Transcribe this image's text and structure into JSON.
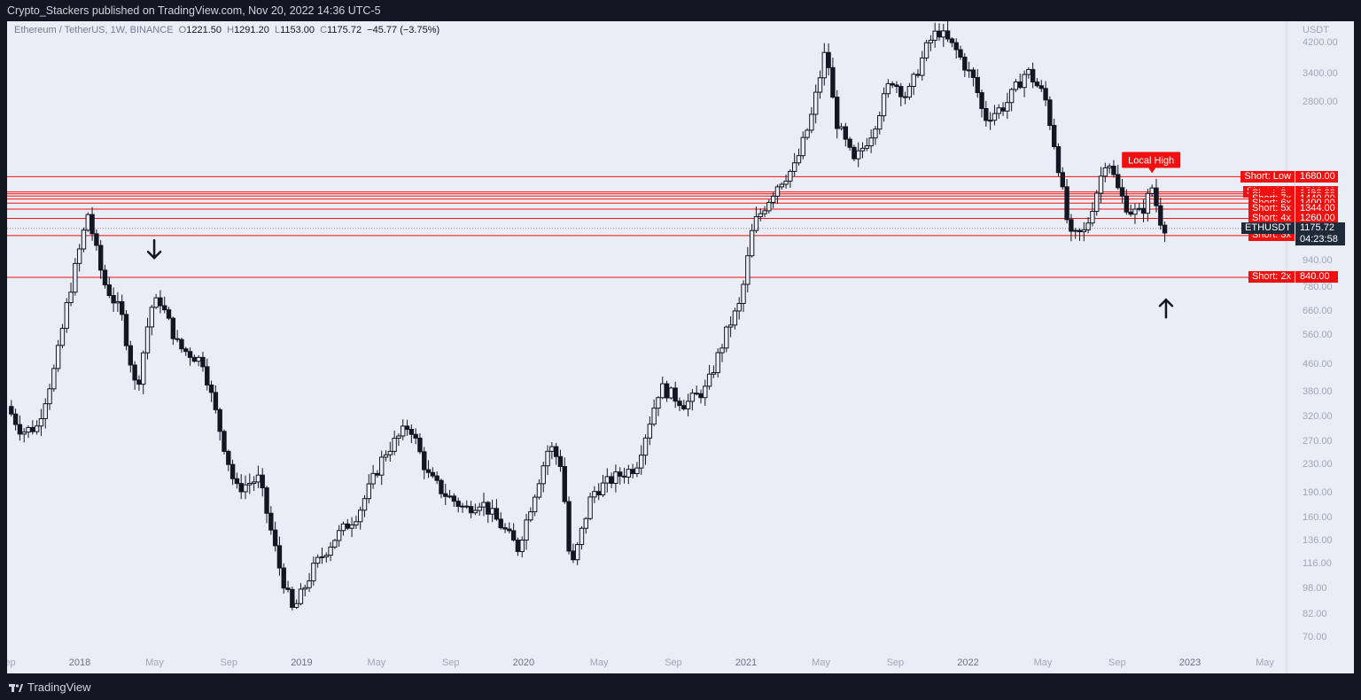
{
  "header": {
    "publisher_line": "Crypto_Stackers published on TradingView.com, Nov 20, 2022 14:36 UTC-5"
  },
  "legend": {
    "symbol": "Ethereum / TetherUS, 1W, BINANCE",
    "o_label": "O",
    "o_value": "1221.50",
    "h_label": "H",
    "h_value": "1291.20",
    "l_label": "L",
    "l_value": "1153.00",
    "c_label": "C",
    "c_value": "1175.72",
    "change": "−45.77 (−3.75%)"
  },
  "footer": {
    "brand": "TradingView"
  },
  "colors": {
    "line": "#f01010",
    "candle": "#131722",
    "background": "#e9edf6",
    "frame": "#131722"
  },
  "chart_data": {
    "type": "candlestick",
    "currency_label": "USDT",
    "scale": "log",
    "ylim": [
      62,
      4900
    ],
    "y_ticks": [
      "4200.00",
      "3400.00",
      "2800.00",
      "940.00",
      "780.00",
      "660.00",
      "560.00",
      "460.00",
      "380.00",
      "320.00",
      "270.00",
      "230.00",
      "190.00",
      "160.00",
      "136.00",
      "116.00",
      "98.00",
      "82.00",
      "70.00"
    ],
    "x_ticks": [
      "Sep",
      "2018",
      "May",
      "Sep",
      "2019",
      "May",
      "Sep",
      "2020",
      "May",
      "Sep",
      "2021",
      "May",
      "Sep",
      "2022",
      "May",
      "Sep",
      "2023",
      "May"
    ],
    "x_range": [
      "2017-09-01",
      "2023-06-15"
    ],
    "date_ticks": [
      "2017-09-01",
      "2018-01-01",
      "2018-05-01",
      "2018-09-01",
      "2019-01-01",
      "2019-05-01",
      "2019-09-01",
      "2020-01-01",
      "2020-05-01",
      "2020-09-01",
      "2021-01-01",
      "2021-05-01",
      "2021-09-01",
      "2022-01-01",
      "2022-05-01",
      "2022-09-01",
      "2023-01-01",
      "2023-05-01"
    ],
    "ohlc_anchors": [
      [
        "2017-09-01",
        345
      ],
      [
        "2017-09-25",
        290
      ],
      [
        "2017-10-20",
        300
      ],
      [
        "2017-11-20",
        460
      ],
      [
        "2017-12-10",
        720
      ],
      [
        "2018-01-12",
        1300
      ],
      [
        "2018-02-06",
        820
      ],
      [
        "2018-03-08",
        650
      ],
      [
        "2018-04-02",
        380
      ],
      [
        "2018-04-25",
        680
      ],
      [
        "2018-05-10",
        720
      ],
      [
        "2018-06-10",
        520
      ],
      [
        "2018-07-20",
        470
      ],
      [
        "2018-08-20",
        280
      ],
      [
        "2018-09-12",
        195
      ],
      [
        "2018-10-20",
        210
      ],
      [
        "2018-11-25",
        110
      ],
      [
        "2018-12-15",
        84
      ],
      [
        "2019-01-20",
        115
      ],
      [
        "2019-02-20",
        138
      ],
      [
        "2019-04-01",
        165
      ],
      [
        "2019-05-15",
        250
      ],
      [
        "2019-06-25",
        305
      ],
      [
        "2019-07-25",
        215
      ],
      [
        "2019-08-20",
        190
      ],
      [
        "2019-09-25",
        170
      ],
      [
        "2019-10-20",
        180
      ],
      [
        "2019-11-25",
        150
      ],
      [
        "2019-12-20",
        130
      ],
      [
        "2020-02-10",
        265
      ],
      [
        "2020-03-01",
        230
      ],
      [
        "2020-03-16",
        110
      ],
      [
        "2020-04-20",
        190
      ],
      [
        "2020-05-25",
        210
      ],
      [
        "2020-07-01",
        228
      ],
      [
        "2020-08-10",
        395
      ],
      [
        "2020-09-20",
        350
      ],
      [
        "2020-10-25",
        390
      ],
      [
        "2020-12-01",
        600
      ],
      [
        "2020-12-20",
        700
      ],
      [
        "2021-01-10",
        1200
      ],
      [
        "2021-02-20",
        1600
      ],
      [
        "2021-03-20",
        1800
      ],
      [
        "2021-04-15",
        2500
      ],
      [
        "2021-05-10",
        4100
      ],
      [
        "2021-05-25",
        2500
      ],
      [
        "2021-06-25",
        1850
      ],
      [
        "2021-07-25",
        2300
      ],
      [
        "2021-08-25",
        3300
      ],
      [
        "2021-09-20",
        2900
      ],
      [
        "2021-10-25",
        4200
      ],
      [
        "2021-11-10",
        4600
      ],
      [
        "2021-12-10",
        4000
      ],
      [
        "2022-01-10",
        3200
      ],
      [
        "2022-01-25",
        2500
      ],
      [
        "2022-03-01",
        2750
      ],
      [
        "2022-04-05",
        3500
      ],
      [
        "2022-05-05",
        2900
      ],
      [
        "2022-05-25",
        1900
      ],
      [
        "2022-06-15",
        1100
      ],
      [
        "2022-07-10",
        1150
      ],
      [
        "2022-08-15",
        1950
      ],
      [
        "2022-09-01",
        1550
      ],
      [
        "2022-09-20",
        1330
      ],
      [
        "2022-10-10",
        1300
      ],
      [
        "2022-10-28",
        1560
      ],
      [
        "2022-11-10",
        1250
      ],
      [
        "2022-11-20",
        1175.72
      ]
    ],
    "horizontal_levels": [
      {
        "label": "Short: Low",
        "value": "1680.00"
      },
      {
        "label": "Short: 10x",
        "value": "1512.00"
      },
      {
        "label": "Short: 9x",
        "value": "1493.33"
      },
      {
        "label": "Short: 8x",
        "value": "1470.00"
      },
      {
        "label": "Short: 7x",
        "value": "1440.00"
      },
      {
        "label": "Short: 6x",
        "value": "1400.00"
      },
      {
        "label": "Short: 5x",
        "value": "1344.00"
      },
      {
        "label": "Short: 4x",
        "value": "1260.00"
      },
      {
        "label": "Short: 3x",
        "value": "1120.00"
      },
      {
        "label": "Short: 2x",
        "value": "840.00"
      }
    ],
    "last_price": {
      "symbol": "ETHUSDT",
      "value": "1175.72",
      "countdown": "04:23:58"
    },
    "annotation": {
      "text": "Local High",
      "date": "2022-10-28",
      "value": 1560
    },
    "arrows": [
      {
        "direction": "down",
        "date": "2018-05-01",
        "value": 960
      },
      {
        "direction": "up",
        "date": "2022-11-20",
        "value": 720
      }
    ]
  }
}
